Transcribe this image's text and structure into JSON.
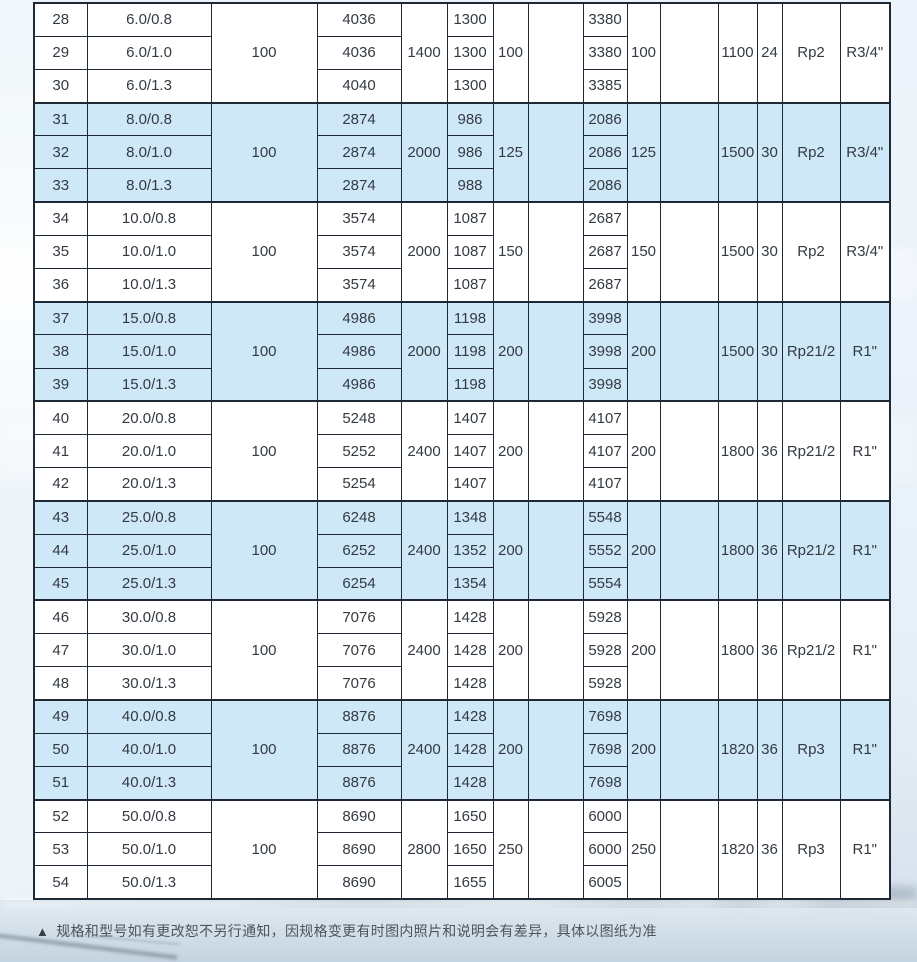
{
  "colors": {
    "row_highlight": "#cfe8f8",
    "row_plain": "#ffffff",
    "grid_border": "#1f2935",
    "text": "#333a42",
    "page_bg_top": "#edf4fb",
    "page_bg_bottom": "#ccdae6"
  },
  "footnote": {
    "marker": "▲",
    "text": "规格和型号如有更改恕不另行通知，因规格变更有时图内照片和说明会有差异，具体以图纸为准"
  },
  "table": {
    "groups": [
      {
        "highlight": false,
        "rows": [
          {
            "no": "28",
            "spec": "6.0/0.8",
            "c4": "4036",
            "c6": "1300",
            "c9": "3380"
          },
          {
            "no": "29",
            "spec": "6.0/1.0",
            "c4": "4036",
            "c6": "1300",
            "c9": "3380"
          },
          {
            "no": "30",
            "spec": "6.0/1.3",
            "c4": "4040",
            "c6": "1300",
            "c9": "3385"
          }
        ],
        "merged": {
          "c3": "100",
          "c5": "1400",
          "c7": "100",
          "c8": "",
          "c10": "100",
          "c11": "",
          "c12": "1100",
          "c13": "24",
          "c14": "Rp2",
          "c15": "R3/4\""
        }
      },
      {
        "highlight": true,
        "rows": [
          {
            "no": "31",
            "spec": "8.0/0.8",
            "c4": "2874",
            "c6": "986",
            "c9": "2086"
          },
          {
            "no": "32",
            "spec": "8.0/1.0",
            "c4": "2874",
            "c6": "986",
            "c9": "2086"
          },
          {
            "no": "33",
            "spec": "8.0/1.3",
            "c4": "2874",
            "c6": "988",
            "c9": "2086"
          }
        ],
        "merged": {
          "c3": "100",
          "c5": "2000",
          "c7": "125",
          "c8": "",
          "c10": "125",
          "c11": "",
          "c12": "1500",
          "c13": "30",
          "c14": "Rp2",
          "c15": "R3/4\""
        }
      },
      {
        "highlight": false,
        "rows": [
          {
            "no": "34",
            "spec": "10.0/0.8",
            "c4": "3574",
            "c6": "1087",
            "c9": "2687"
          },
          {
            "no": "35",
            "spec": "10.0/1.0",
            "c4": "3574",
            "c6": "1087",
            "c9": "2687"
          },
          {
            "no": "36",
            "spec": "10.0/1.3",
            "c4": "3574",
            "c6": "1087",
            "c9": "2687"
          }
        ],
        "merged": {
          "c3": "100",
          "c5": "2000",
          "c7": "150",
          "c8": "",
          "c10": "150",
          "c11": "",
          "c12": "1500",
          "c13": "30",
          "c14": "Rp2",
          "c15": "R3/4\""
        }
      },
      {
        "highlight": true,
        "rows": [
          {
            "no": "37",
            "spec": "15.0/0.8",
            "c4": "4986",
            "c6": "1198",
            "c9": "3998"
          },
          {
            "no": "38",
            "spec": "15.0/1.0",
            "c4": "4986",
            "c6": "1198",
            "c9": "3998"
          },
          {
            "no": "39",
            "spec": "15.0/1.3",
            "c4": "4986",
            "c6": "1198",
            "c9": "3998"
          }
        ],
        "merged": {
          "c3": "100",
          "c5": "2000",
          "c7": "200",
          "c8": "",
          "c10": "200",
          "c11": "",
          "c12": "1500",
          "c13": "30",
          "c14": "Rp21/2",
          "c15": "R1\""
        }
      },
      {
        "highlight": false,
        "rows": [
          {
            "no": "40",
            "spec": "20.0/0.8",
            "c4": "5248",
            "c6": "1407",
            "c9": "4107"
          },
          {
            "no": "41",
            "spec": "20.0/1.0",
            "c4": "5252",
            "c6": "1407",
            "c9": "4107"
          },
          {
            "no": "42",
            "spec": "20.0/1.3",
            "c4": "5254",
            "c6": "1407",
            "c9": "4107"
          }
        ],
        "merged": {
          "c3": "100",
          "c5": "2400",
          "c7": "200",
          "c8": "",
          "c10": "200",
          "c11": "",
          "c12": "1800",
          "c13": "36",
          "c14": "Rp21/2",
          "c15": "R1\""
        }
      },
      {
        "highlight": true,
        "rows": [
          {
            "no": "43",
            "spec": "25.0/0.8",
            "c4": "6248",
            "c6": "1348",
            "c9": "5548"
          },
          {
            "no": "44",
            "spec": "25.0/1.0",
            "c4": "6252",
            "c6": "1352",
            "c9": "5552"
          },
          {
            "no": "45",
            "spec": "25.0/1.3",
            "c4": "6254",
            "c6": "1354",
            "c9": "5554"
          }
        ],
        "merged": {
          "c3": "100",
          "c5": "2400",
          "c7": "200",
          "c8": "",
          "c10": "200",
          "c11": "",
          "c12": "1800",
          "c13": "36",
          "c14": "Rp21/2",
          "c15": "R1\""
        }
      },
      {
        "highlight": false,
        "rows": [
          {
            "no": "46",
            "spec": "30.0/0.8",
            "c4": "7076",
            "c6": "1428",
            "c9": "5928"
          },
          {
            "no": "47",
            "spec": "30.0/1.0",
            "c4": "7076",
            "c6": "1428",
            "c9": "5928"
          },
          {
            "no": "48",
            "spec": "30.0/1.3",
            "c4": "7076",
            "c6": "1428",
            "c9": "5928"
          }
        ],
        "merged": {
          "c3": "100",
          "c5": "2400",
          "c7": "200",
          "c8": "",
          "c10": "200",
          "c11": "",
          "c12": "1800",
          "c13": "36",
          "c14": "Rp21/2",
          "c15": "R1\""
        }
      },
      {
        "highlight": true,
        "rows": [
          {
            "no": "49",
            "spec": "40.0/0.8",
            "c4": "8876",
            "c6": "1428",
            "c9": "7698"
          },
          {
            "no": "50",
            "spec": "40.0/1.0",
            "c4": "8876",
            "c6": "1428",
            "c9": "7698"
          },
          {
            "no": "51",
            "spec": "40.0/1.3",
            "c4": "8876",
            "c6": "1428",
            "c9": "7698"
          }
        ],
        "merged": {
          "c3": "100",
          "c5": "2400",
          "c7": "200",
          "c8": "",
          "c10": "200",
          "c11": "",
          "c12": "1820",
          "c13": "36",
          "c14": "Rp3",
          "c15": "R1\""
        }
      },
      {
        "highlight": false,
        "rows": [
          {
            "no": "52",
            "spec": "50.0/0.8",
            "c4": "8690",
            "c6": "1650",
            "c9": "6000"
          },
          {
            "no": "53",
            "spec": "50.0/1.0",
            "c4": "8690",
            "c6": "1650",
            "c9": "6000"
          },
          {
            "no": "54",
            "spec": "50.0/1.3",
            "c4": "8690",
            "c6": "1655",
            "c9": "6005"
          }
        ],
        "merged": {
          "c3": "100",
          "c5": "2800",
          "c7": "250",
          "c8": "",
          "c10": "250",
          "c11": "",
          "c12": "1820",
          "c13": "36",
          "c14": "Rp3",
          "c15": "R1\""
        }
      }
    ]
  }
}
